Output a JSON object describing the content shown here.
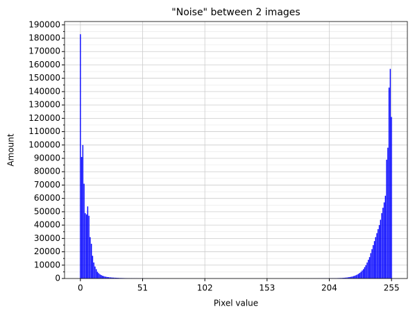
{
  "chart_data": {
    "type": "bar",
    "title": "\"Noise\" between 2 images",
    "x_label": "Pixel value",
    "y_label": "Amount",
    "x": [
      0,
      1,
      2,
      3,
      4,
      5,
      6,
      7,
      8,
      9,
      10,
      11,
      12,
      13,
      14,
      15,
      16,
      17,
      18,
      19,
      20,
      21,
      22,
      23,
      24,
      25,
      26,
      27,
      28,
      29,
      30,
      31,
      32,
      33,
      34,
      35,
      36,
      37,
      38,
      39,
      40,
      41,
      42,
      43,
      44,
      45,
      46,
      47,
      48,
      49,
      50,
      51,
      52,
      53,
      54,
      55,
      56,
      57,
      58,
      59,
      60,
      61,
      62,
      63,
      64,
      65,
      66,
      67,
      68,
      69,
      70,
      71,
      72,
      73,
      74,
      75,
      76,
      77,
      78,
      79,
      80,
      81,
      82,
      83,
      84,
      85,
      86,
      87,
      88,
      89,
      90,
      91,
      92,
      93,
      94,
      95,
      96,
      97,
      98,
      99,
      100,
      101,
      102,
      103,
      104,
      105,
      106,
      107,
      108,
      109,
      110,
      111,
      112,
      113,
      114,
      115,
      116,
      117,
      118,
      119,
      120,
      121,
      122,
      123,
      124,
      125,
      126,
      127,
      128,
      129,
      130,
      131,
      132,
      133,
      134,
      135,
      136,
      137,
      138,
      139,
      140,
      141,
      142,
      143,
      144,
      145,
      146,
      147,
      148,
      149,
      150,
      151,
      152,
      153,
      154,
      155,
      156,
      157,
      158,
      159,
      160,
      161,
      162,
      163,
      164,
      165,
      166,
      167,
      168,
      169,
      170,
      171,
      172,
      173,
      174,
      175,
      176,
      177,
      178,
      179,
      180,
      181,
      182,
      183,
      184,
      185,
      186,
      187,
      188,
      189,
      190,
      191,
      192,
      193,
      194,
      195,
      196,
      197,
      198,
      199,
      200,
      201,
      202,
      203,
      204,
      205,
      206,
      207,
      208,
      209,
      210,
      211,
      212,
      213,
      214,
      215,
      216,
      217,
      218,
      219,
      220,
      221,
      222,
      223,
      224,
      225,
      226,
      227,
      228,
      229,
      230,
      231,
      232,
      233,
      234,
      235,
      236,
      237,
      238,
      239,
      240,
      241,
      242,
      243,
      244,
      245,
      246,
      247,
      248,
      249,
      250,
      251,
      252,
      253,
      254,
      255
    ],
    "values": [
      183000,
      91000,
      100000,
      71000,
      49000,
      48000,
      54000,
      47000,
      31000,
      26000,
      17000,
      12000,
      9000,
      7000,
      5000,
      4000,
      3200,
      2600,
      2100,
      1800,
      1500,
      1300,
      1100,
      1000,
      900,
      800,
      700,
      650,
      600,
      550,
      500,
      450,
      400,
      380,
      350,
      330,
      300,
      280,
      260,
      240,
      220,
      200,
      190,
      180,
      170,
      160,
      150,
      140,
      130,
      120,
      110,
      100,
      95,
      90,
      85,
      80,
      76,
      72,
      68,
      64,
      60,
      57,
      54,
      51,
      48,
      46,
      44,
      42,
      40,
      38,
      36,
      35,
      34,
      33,
      32,
      31,
      30,
      29,
      28,
      27,
      26,
      25,
      25,
      24,
      24,
      23,
      23,
      22,
      22,
      21,
      21,
      20,
      20,
      20,
      20,
      20,
      20,
      20,
      20,
      20,
      20,
      20,
      20,
      20,
      20,
      20,
      20,
      20,
      20,
      20,
      20,
      20,
      20,
      20,
      20,
      20,
      20,
      20,
      20,
      20,
      20,
      20,
      20,
      20,
      20,
      20,
      20,
      20,
      20,
      20,
      20,
      20,
      20,
      20,
      20,
      20,
      20,
      20,
      20,
      20,
      20,
      20,
      20,
      20,
      20,
      20,
      20,
      20,
      20,
      20,
      20,
      20,
      20,
      20,
      20,
      21,
      21,
      22,
      22,
      23,
      23,
      24,
      24,
      25,
      25,
      26,
      27,
      28,
      29,
      30,
      31,
      32,
      33,
      34,
      35,
      36,
      38,
      40,
      42,
      44,
      46,
      48,
      51,
      54,
      57,
      60,
      64,
      68,
      72,
      76,
      80,
      85,
      90,
      95,
      100,
      110,
      120,
      130,
      140,
      150,
      160,
      170,
      180,
      190,
      200,
      210,
      220,
      230,
      240,
      250,
      270,
      300,
      330,
      360,
      400,
      450,
      520,
      600,
      700,
      800,
      950,
      1100,
      1300,
      1500,
      1800,
      2100,
      2500,
      3000,
      3500,
      4200,
      5000,
      6000,
      7000,
      8500,
      10000,
      12000,
      14000,
      16000,
      19000,
      22000,
      25000,
      28000,
      31000,
      34000,
      37000,
      40000,
      44000,
      49000,
      53000,
      57000,
      62000,
      89000,
      98000,
      143000,
      157000,
      121000
    ],
    "color": "#0000ff",
    "xlim": [
      -13,
      268
    ],
    "xticks": [
      0,
      51,
      102,
      153,
      204,
      255
    ],
    "ylim": [
      0,
      192500
    ],
    "yticks": [
      0,
      10000,
      20000,
      30000,
      40000,
      50000,
      60000,
      70000,
      80000,
      90000,
      100000,
      110000,
      120000,
      130000,
      140000,
      150000,
      160000,
      170000,
      180000,
      190000
    ],
    "minor_yticks": [
      5000,
      15000,
      25000,
      35000,
      45000,
      55000,
      65000,
      75000,
      85000,
      95000,
      105000,
      115000,
      125000,
      135000,
      145000,
      155000,
      165000,
      175000,
      185000
    ],
    "grid": true
  }
}
